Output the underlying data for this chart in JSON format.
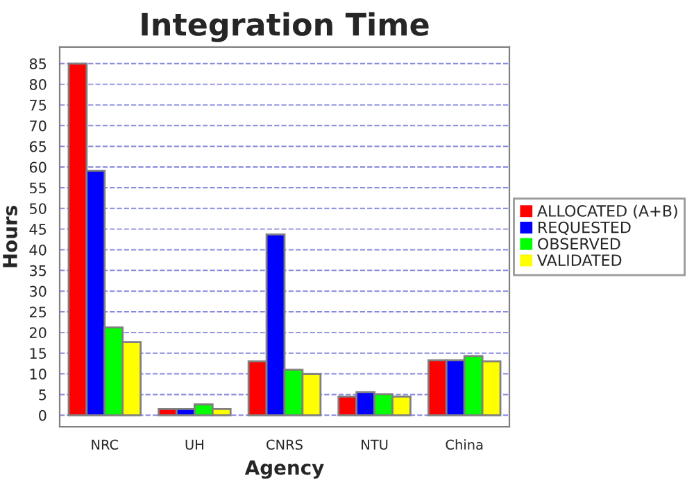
{
  "chart_data": {
    "type": "bar",
    "title": "Integration Time",
    "xlabel": "Agency",
    "ylabel": "Hours",
    "categories": [
      "NRC",
      "UH",
      "CNRS",
      "NTU",
      "China"
    ],
    "series": [
      {
        "name": "ALLOCATED (A+B)",
        "color": "#ff0000",
        "values": [
          85,
          1.5,
          13,
          4.5,
          13.3
        ]
      },
      {
        "name": "REQUESTED",
        "color": "#0000ff",
        "values": [
          59.1,
          1.5,
          43.7,
          5.6,
          13.3
        ]
      },
      {
        "name": "OBSERVED",
        "color": "#00ff00",
        "values": [
          21.2,
          2.6,
          11,
          5.1,
          14.3
        ]
      },
      {
        "name": "VALIDATED",
        "color": "#ffff00",
        "values": [
          17.7,
          1.5,
          10,
          4.5,
          13
        ]
      }
    ],
    "ylim": [
      -2.8,
      89
    ],
    "yticks": [
      0,
      5,
      10,
      15,
      20,
      25,
      30,
      35,
      40,
      45,
      50,
      55,
      60,
      65,
      70,
      75,
      80,
      85
    ],
    "grid": "y",
    "legend": "right"
  }
}
